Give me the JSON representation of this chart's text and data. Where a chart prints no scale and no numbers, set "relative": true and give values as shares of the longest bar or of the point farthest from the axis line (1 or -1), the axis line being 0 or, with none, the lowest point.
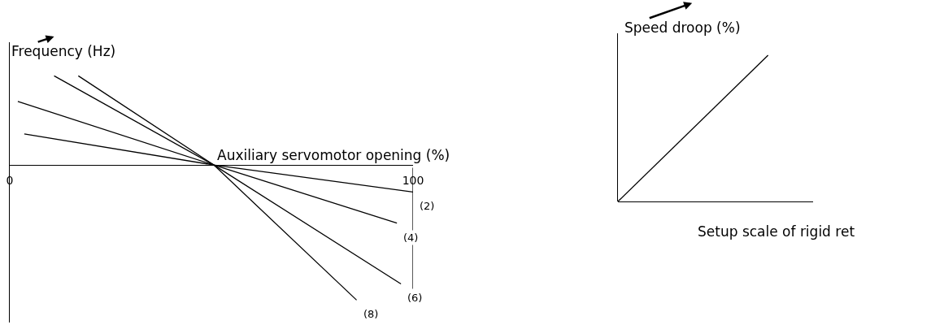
{
  "chart_data": [
    {
      "type": "line",
      "relative": true,
      "xlabel": "Auxiliary servomotor opening (%)",
      "ylabel": "Frequency (Hz)",
      "xlim": [
        0,
        100
      ],
      "xticks": [
        0,
        100
      ],
      "tick_labels": "x",
      "ref_lines": [
        {
          "axis": "x",
          "value": 100
        }
      ],
      "series": [
        {
          "name": "(2)",
          "color": "#000000",
          "x": [
            3.6,
            50.6,
            100
          ],
          "values": [
            0.23,
            0,
            -0.2
          ]
        },
        {
          "name": "(4)",
          "color": "#000000",
          "x": [
            2,
            50.6,
            96
          ],
          "values": [
            0.47,
            0,
            -0.43
          ]
        },
        {
          "name": "(6)",
          "color": "#000000",
          "x": [
            11,
            50.6,
            97
          ],
          "values": [
            0.66,
            0,
            -0.88
          ]
        },
        {
          "name": "(8)",
          "color": "#000000",
          "x": [
            17,
            50.6,
            86
          ],
          "values": [
            0.66,
            0,
            -1
          ]
        }
      ]
    },
    {
      "type": "line",
      "relative": true,
      "xlabel": "Setup scale of rigid ret",
      "ylabel": "Speed droop (%)",
      "categories": [
        null,
        null
      ],
      "tick_labels": false,
      "series": [
        {
          "color": "#000000",
          "values": [
            0,
            1
          ]
        }
      ]
    }
  ]
}
